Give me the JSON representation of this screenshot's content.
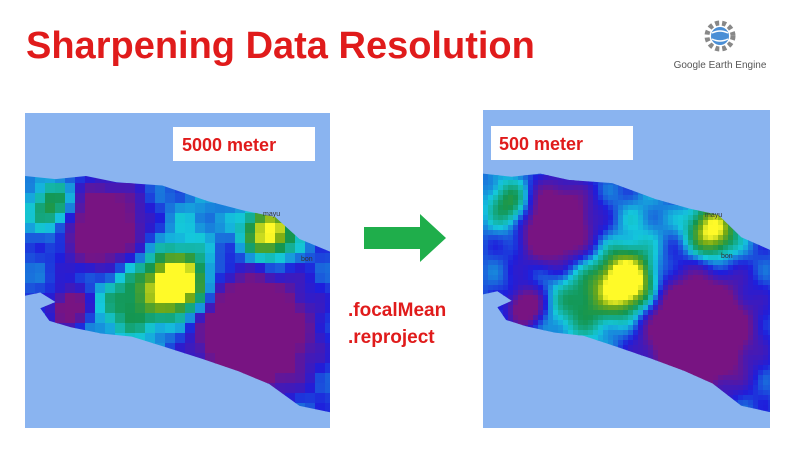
{
  "title": "Sharpening Data Resolution",
  "logo": {
    "label": "Google Earth Engine"
  },
  "left_map": {
    "label": "5000 meter",
    "places": [
      "mayu",
      "bon"
    ]
  },
  "right_map": {
    "label": "500 meter",
    "places": [
      "mayu",
      "bon"
    ]
  },
  "methods": [
    ".focalMean",
    ".reproject"
  ]
}
